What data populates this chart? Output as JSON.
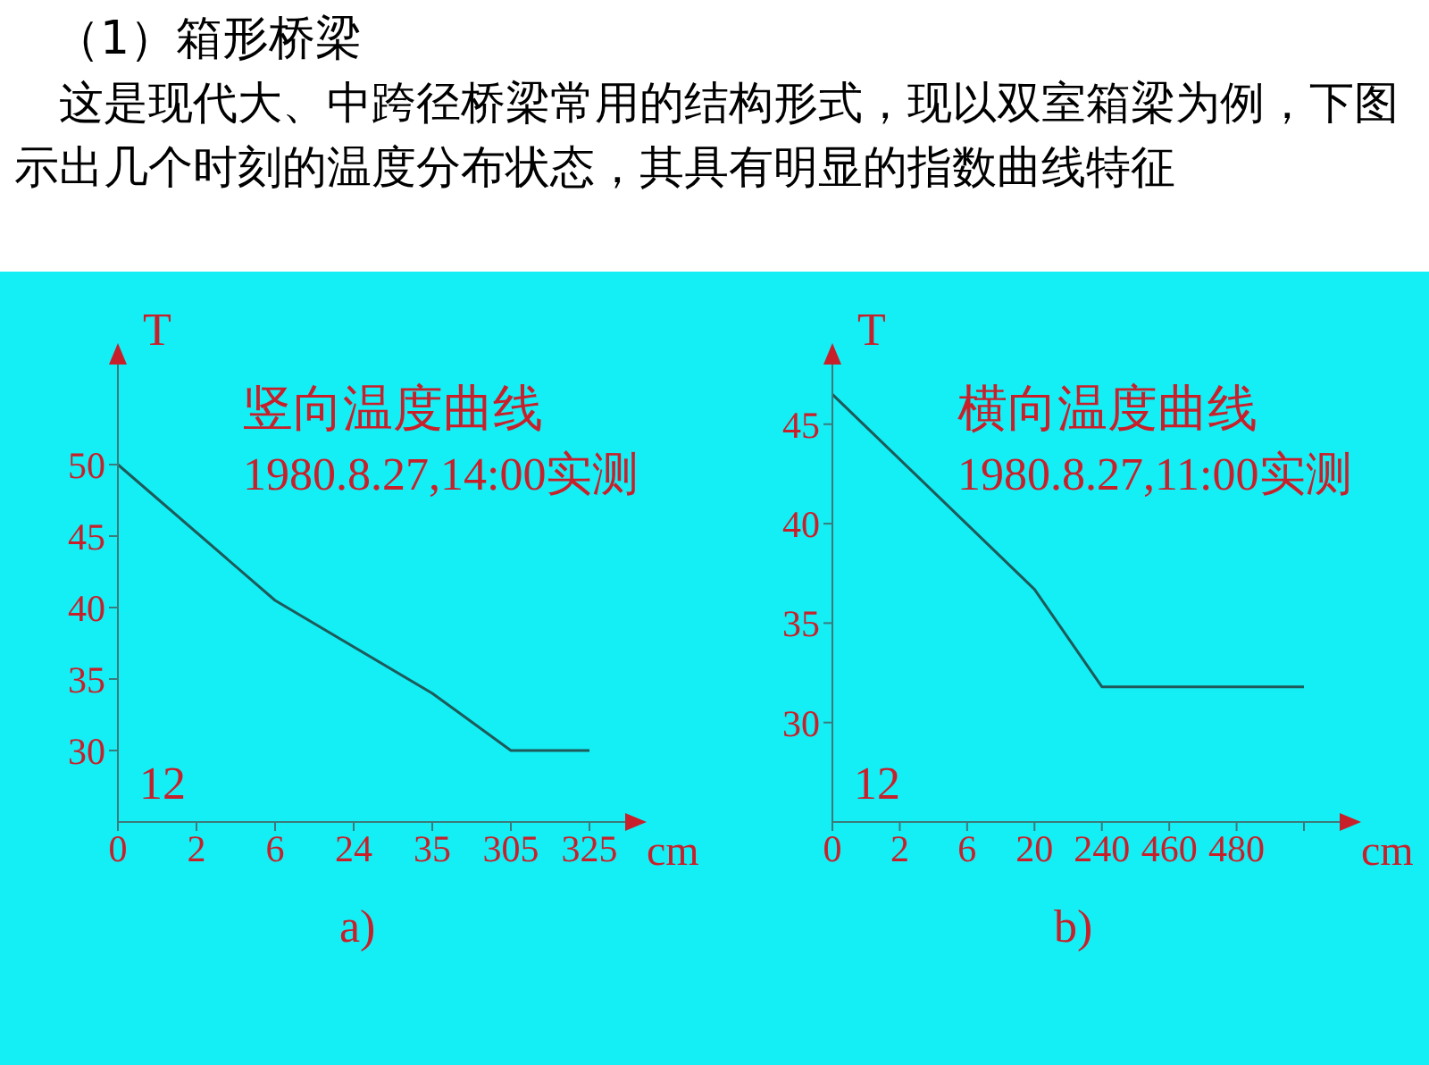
{
  "chart_data": [
    {
      "type": "line",
      "title": "（1）箱形桥梁",
      "subtitle": "这是现代大、中跨径桥梁常用的结构形式，现以双室箱梁为例，下图示出几个时刻的温度分布状态，其具有明显的指数曲线特征",
      "xlabel": "cm",
      "ylabel": "T",
      "categories": [
        "0",
        "2",
        "6",
        "24",
        "35",
        "305",
        "325"
      ],
      "series": [
        {
          "color": "#1e5a5a",
          "values": [
            50,
            null,
            40.5,
            null,
            34,
            30,
            30
          ]
        }
      ],
      "ylim": [
        25,
        57
      ],
      "yticks": [
        30,
        35,
        40,
        45,
        50
      ],
      "grid": false,
      "legend": false,
      "marker": "none",
      "annotations": [
        "竖向温度曲线",
        "1980.8.27,14:00实测",
        "12",
        "a)"
      ]
    },
    {
      "type": "line",
      "xlabel": "cm",
      "ylabel": "T",
      "categories": [
        "0",
        "2",
        "6",
        "20",
        "240",
        "460",
        "480",
        null
      ],
      "series": [
        {
          "color": "#1e5a5a",
          "values": [
            46.5,
            null,
            null,
            36.7,
            31.8,
            null,
            null,
            31.8
          ]
        }
      ],
      "ylim": [
        25,
        48
      ],
      "yticks": [
        30,
        35,
        40,
        45
      ],
      "grid": false,
      "legend": false,
      "marker": "none",
      "annotations": [
        "横向温度曲线",
        "1980.8.27,11:00实测",
        "12",
        "b)"
      ]
    }
  ]
}
